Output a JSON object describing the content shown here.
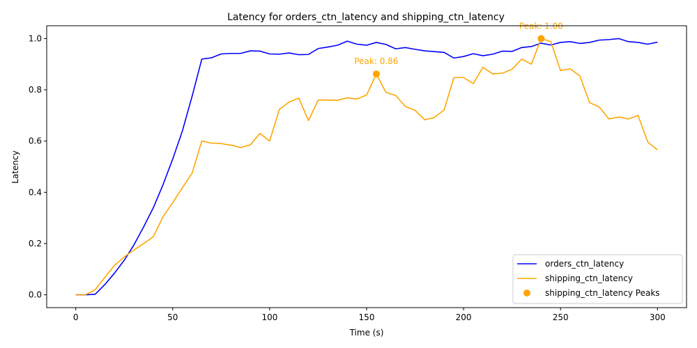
{
  "chart_data": {
    "type": "line",
    "title": "Latency for orders_ctn_latency and shipping_ctn_latency",
    "xlabel": "Time (s)",
    "ylabel": "Latency",
    "xlim": [
      -15,
      315
    ],
    "ylim": [
      -0.05,
      1.05
    ],
    "xticks": [
      0,
      50,
      100,
      150,
      200,
      250,
      300
    ],
    "xtick_labels": [
      "0",
      "50",
      "100",
      "150",
      "200",
      "250",
      "300"
    ],
    "yticks": [
      0.0,
      0.2,
      0.4,
      0.6,
      0.8,
      1.0
    ],
    "ytick_labels": [
      "0.0",
      "0.2",
      "0.4",
      "0.6",
      "0.8",
      "1.0"
    ],
    "grid": false,
    "legend_position": "bottom-right",
    "x": [
      0,
      5,
      10,
      15,
      20,
      25,
      30,
      35,
      40,
      45,
      50,
      55,
      60,
      65,
      70,
      75,
      80,
      85,
      90,
      95,
      100,
      105,
      110,
      115,
      120,
      125,
      130,
      135,
      140,
      145,
      150,
      155,
      160,
      165,
      170,
      175,
      180,
      185,
      190,
      195,
      200,
      205,
      210,
      215,
      220,
      225,
      230,
      235,
      240,
      245,
      250,
      255,
      260,
      265,
      270,
      275,
      280,
      285,
      290,
      295,
      300
    ],
    "series": [
      {
        "name": "orders_ctn_latency",
        "color": "#0000ff",
        "values": [
          0.0,
          0.0,
          0.002,
          0.04,
          0.085,
          0.135,
          0.195,
          0.265,
          0.34,
          0.43,
          0.53,
          0.64,
          0.775,
          0.92,
          0.925,
          0.94,
          0.942,
          0.942,
          0.952,
          0.951,
          0.94,
          0.939,
          0.944,
          0.937,
          0.938,
          0.961,
          0.967,
          0.974,
          0.99,
          0.978,
          0.974,
          0.985,
          0.977,
          0.96,
          0.965,
          0.958,
          0.952,
          0.949,
          0.946,
          0.924,
          0.93,
          0.941,
          0.933,
          0.939,
          0.951,
          0.95,
          0.965,
          0.969,
          0.982,
          0.975,
          0.985,
          0.988,
          0.981,
          0.985,
          0.994,
          0.996,
          1.0,
          0.988,
          0.985,
          0.978,
          0.986
        ]
      },
      {
        "name": "shipping_ctn_latency",
        "color": "#ffa500",
        "values": [
          0.0,
          0.0,
          0.02,
          0.068,
          0.115,
          0.148,
          0.175,
          0.2,
          0.227,
          0.305,
          0.36,
          0.418,
          0.475,
          0.6,
          0.592,
          0.59,
          0.584,
          0.575,
          0.585,
          0.63,
          0.6,
          0.724,
          0.752,
          0.768,
          0.68,
          0.76,
          0.76,
          0.759,
          0.769,
          0.764,
          0.78,
          0.862,
          0.79,
          0.778,
          0.735,
          0.72,
          0.683,
          0.692,
          0.722,
          0.848,
          0.848,
          0.824,
          0.888,
          0.862,
          0.865,
          0.88,
          0.92,
          0.9,
          1.0,
          0.988,
          0.875,
          0.882,
          0.854,
          0.75,
          0.733,
          0.686,
          0.694,
          0.686,
          0.7,
          0.596,
          0.566
        ]
      }
    ],
    "peaks": {
      "name": "shipping_ctn_latency Peaks",
      "color": "#ffa500",
      "points": [
        {
          "x": 155,
          "y": 0.862,
          "label": "Peak: 0.86"
        },
        {
          "x": 240,
          "y": 1.0,
          "label": "Peak: 1.00"
        }
      ]
    }
  }
}
